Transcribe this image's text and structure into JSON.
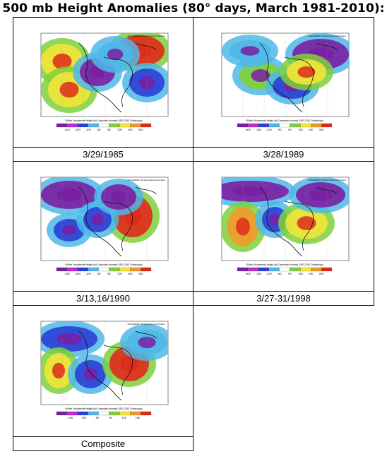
{
  "title": "500 mb Height Anomalies (80° days, March 1981-2010):",
  "panels": [
    {
      "caption": "3/29/1985",
      "scale": [
        "-300",
        "-150",
        "-100",
        "-50",
        "50",
        "100",
        "150",
        "300"
      ]
    },
    {
      "caption": "3/28/1989",
      "scale": [
        "-300",
        "-150",
        "-100",
        "-50",
        "50",
        "100",
        "150",
        "300"
      ]
    },
    {
      "caption": "3/13,16/1990",
      "scale": [
        "-250",
        "-150",
        "-100",
        "-50",
        "50",
        "100",
        "150",
        "250"
      ]
    },
    {
      "caption": "3/27-31/1998",
      "scale": [
        "-200",
        "-150",
        "-100",
        "-50",
        "50",
        "100",
        "150",
        "200"
      ]
    },
    {
      "caption": "Composite",
      "scale": [
        "-150",
        "-100",
        "-50",
        "50",
        "100",
        "150"
      ]
    }
  ],
  "map_text": {
    "header": "NOAA/ESRL Physical Sciences Division",
    "footer": "500mb Geopotential Height (m) Composite Anomaly (1981-2010 Climatology)"
  },
  "colors": {
    "purple": "#7a1fa2",
    "magenta": "#c42ad6",
    "blue": "#2a3fd6",
    "cyan": "#4fb8e8",
    "white": "#ffffff",
    "green": "#7fd13b",
    "yellow": "#f2e63a",
    "orange": "#f29a2a",
    "red": "#e02a1a"
  }
}
